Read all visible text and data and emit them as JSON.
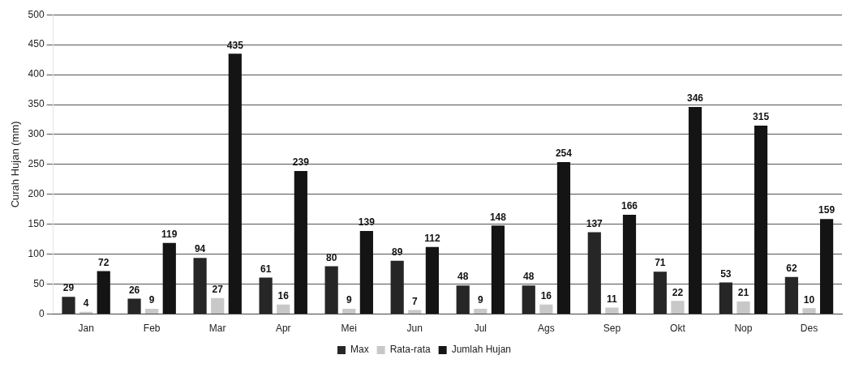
{
  "chart_data": {
    "type": "bar",
    "ylabel": "Curah Hujan (mm)",
    "categories": [
      "Jan",
      "Feb",
      "Mar",
      "Apr",
      "Mei",
      "Jun",
      "Jul",
      "Ags",
      "Sep",
      "Okt",
      "Nop",
      "Des"
    ],
    "series": [
      {
        "name": "Max",
        "color": "#262626",
        "values": [
          29,
          26,
          94,
          61,
          80,
          89,
          48,
          48,
          137,
          71,
          53,
          62
        ]
      },
      {
        "name": "Rata-rata",
        "color": "#c8c8c8",
        "values": [
          4,
          9,
          27,
          16,
          9,
          7,
          9,
          16,
          11,
          22,
          21,
          10
        ]
      },
      {
        "name": "Jumlah Hujan",
        "color": "#141414",
        "values": [
          72,
          119,
          435,
          239,
          139,
          112,
          148,
          254,
          166,
          346,
          315,
          159
        ]
      }
    ],
    "ylim": [
      0,
      500
    ],
    "yticks": [
      0,
      50,
      100,
      150,
      200,
      250,
      300,
      350,
      400,
      450,
      500
    ],
    "grid": "y",
    "legend": "bottom",
    "data_labels": true
  }
}
